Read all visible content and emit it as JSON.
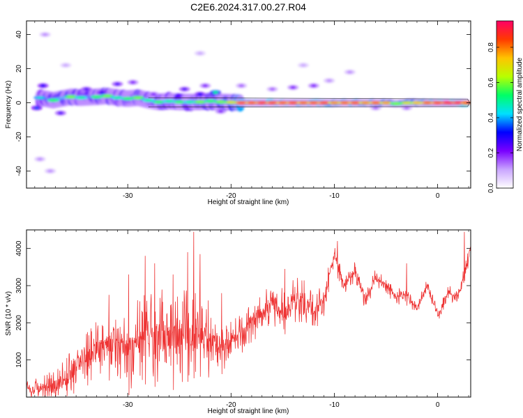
{
  "figure_title": "C2E6.2024.317.00.27.R04",
  "chart_data": [
    {
      "type": "heatmap",
      "title": "",
      "xlabel": "Height of straight line (km)",
      "ylabel": "Frequency (Hz)",
      "xlim": [
        -39.8,
        3.2
      ],
      "ylim": [
        -50,
        48
      ],
      "x_ticks": [
        -30,
        -20,
        -10,
        0
      ],
      "x_tick_labels": [
        "-30",
        "-20",
        "-10",
        "0"
      ],
      "y_ticks": [
        -40,
        -20,
        0,
        20,
        40
      ],
      "y_tick_labels": [
        "-40",
        "-20",
        "0",
        "20",
        "40"
      ],
      "colorbar": {
        "label": "Normalized spectral amplitude",
        "range": [
          0,
          0.95
        ],
        "ticks": [
          0.0,
          0.2,
          0.4,
          0.6,
          0.8
        ],
        "tick_labels": [
          "0.0",
          "0.2",
          "0.4",
          "0.6",
          "0.8"
        ],
        "colormap": [
          "#ffffff",
          "#c9a5ff",
          "#7a00ff",
          "#0000ff",
          "#00e0ff",
          "#00ff66",
          "#b8ff00",
          "#ffc400",
          "#ff3a00",
          "#ff0066"
        ]
      },
      "ridge_points": [
        {
          "x": -38.5,
          "y": 3.0,
          "a": 0.45
        },
        {
          "x": -37.2,
          "y": 1.5,
          "a": 0.55
        },
        {
          "x": -35.5,
          "y": 3.5,
          "a": 0.6
        },
        {
          "x": -34.5,
          "y": 3.0,
          "a": 0.5
        },
        {
          "x": -33.0,
          "y": 3.5,
          "a": 0.55
        },
        {
          "x": -32.0,
          "y": 4.0,
          "a": 0.6
        },
        {
          "x": -31.0,
          "y": 3.0,
          "a": 0.5
        },
        {
          "x": -30.0,
          "y": 2.5,
          "a": 0.55
        },
        {
          "x": -29.0,
          "y": 3.0,
          "a": 0.6
        },
        {
          "x": -28.0,
          "y": 1.5,
          "a": 0.5
        },
        {
          "x": -27.0,
          "y": 0.5,
          "a": 0.55
        },
        {
          "x": -26.0,
          "y": 1.0,
          "a": 0.5
        },
        {
          "x": -25.0,
          "y": 0.5,
          "a": 0.55
        },
        {
          "x": -24.0,
          "y": 0.5,
          "a": 0.5
        },
        {
          "x": -23.0,
          "y": 0.5,
          "a": 0.6
        },
        {
          "x": -22.0,
          "y": 1.0,
          "a": 0.55
        },
        {
          "x": -21.0,
          "y": 0.5,
          "a": 0.6
        },
        {
          "x": -20.0,
          "y": 0.3,
          "a": 0.7
        },
        {
          "x": -19.0,
          "y": 0.0,
          "a": 0.9
        },
        {
          "x": -18.0,
          "y": 0.0,
          "a": 0.88
        },
        {
          "x": -17.0,
          "y": 0.0,
          "a": 0.92
        },
        {
          "x": -16.0,
          "y": 0.0,
          "a": 0.9
        },
        {
          "x": -15.0,
          "y": 0.0,
          "a": 0.87
        },
        {
          "x": -14.0,
          "y": 0.0,
          "a": 0.9
        },
        {
          "x": -13.0,
          "y": 0.0,
          "a": 0.85
        },
        {
          "x": -12.0,
          "y": 0.0,
          "a": 0.88
        },
        {
          "x": -11.0,
          "y": 0.0,
          "a": 0.9
        },
        {
          "x": -10.0,
          "y": 0.0,
          "a": 0.8
        },
        {
          "x": -9.0,
          "y": 0.0,
          "a": 0.85
        },
        {
          "x": -8.0,
          "y": 0.0,
          "a": 0.88
        },
        {
          "x": -7.0,
          "y": 0.0,
          "a": 0.8
        },
        {
          "x": -6.0,
          "y": 0.0,
          "a": 0.85
        },
        {
          "x": -5.0,
          "y": 0.0,
          "a": 0.78
        },
        {
          "x": -4.0,
          "y": -0.5,
          "a": 0.6
        },
        {
          "x": -3.0,
          "y": 0.0,
          "a": 0.7
        },
        {
          "x": -2.0,
          "y": 0.0,
          "a": 0.75
        },
        {
          "x": -1.0,
          "y": 0.0,
          "a": 0.85
        },
        {
          "x": 0.0,
          "y": 0.0,
          "a": 0.9
        },
        {
          "x": 1.0,
          "y": 0.0,
          "a": 0.95
        },
        {
          "x": 2.0,
          "y": 0.0,
          "a": 0.95
        },
        {
          "x": 2.8,
          "y": 0.0,
          "a": 0.9
        }
      ],
      "scatter_blobs": [
        {
          "x": -38.2,
          "y": 10,
          "a": 0.3
        },
        {
          "x": -38.8,
          "y": -3,
          "a": 0.35
        },
        {
          "x": -36.5,
          "y": -6,
          "a": 0.25
        },
        {
          "x": -34.0,
          "y": 8,
          "a": 0.25
        },
        {
          "x": -32.5,
          "y": 6,
          "a": 0.3
        },
        {
          "x": -31.0,
          "y": 11,
          "a": 0.25
        },
        {
          "x": -29.5,
          "y": 12,
          "a": 0.2
        },
        {
          "x": -27.5,
          "y": 5,
          "a": 0.2
        },
        {
          "x": -24.5,
          "y": 8,
          "a": 0.25
        },
        {
          "x": -23.0,
          "y": 5,
          "a": 0.3
        },
        {
          "x": -22.5,
          "y": 10,
          "a": 0.2
        },
        {
          "x": -21.5,
          "y": 6,
          "a": 0.5
        },
        {
          "x": -19.0,
          "y": 10,
          "a": 0.15
        },
        {
          "x": -16.0,
          "y": 8,
          "a": 0.15
        },
        {
          "x": -14.0,
          "y": 9,
          "a": 0.2
        },
        {
          "x": -12.0,
          "y": 10,
          "a": 0.2
        },
        {
          "x": -10.5,
          "y": 13,
          "a": 0.12
        },
        {
          "x": -8.5,
          "y": 18,
          "a": 0.12
        },
        {
          "x": -6.0,
          "y": -3,
          "a": 0.15
        },
        {
          "x": -3.0,
          "y": -3,
          "a": 0.15
        },
        {
          "x": -38.0,
          "y": 40,
          "a": 0.12
        },
        {
          "x": -38.5,
          "y": -33,
          "a": 0.12
        },
        {
          "x": -37.5,
          "y": -40,
          "a": 0.12
        },
        {
          "x": -36.0,
          "y": 22,
          "a": 0.1
        },
        {
          "x": -23.0,
          "y": 29,
          "a": 0.1
        },
        {
          "x": -13.0,
          "y": 22,
          "a": 0.1
        },
        {
          "x": -21.0,
          "y": -5,
          "a": 0.2
        }
      ]
    },
    {
      "type": "line",
      "title": "",
      "xlabel": "Height of straight line (km)",
      "ylabel": "SNR (10 * v/v)",
      "xlim": [
        -39.8,
        3.2
      ],
      "ylim": [
        0,
        4500
      ],
      "x_ticks": [
        -30,
        -20,
        -10,
        0
      ],
      "x_tick_labels": [
        "-30",
        "-20",
        "-10",
        "0"
      ],
      "y_ticks": [
        1000,
        2000,
        3000,
        4000
      ],
      "y_tick_labels": [
        "1000",
        "2000",
        "3000",
        "4000"
      ],
      "line_color": "#ee3333",
      "anchors": {
        "x": [
          -39.8,
          -38.5,
          -37.0,
          -36.0,
          -35.0,
          -34.0,
          -33.0,
          -32.0,
          -31.0,
          -30.0,
          -29.0,
          -28.0,
          -27.0,
          -26.0,
          -25.0,
          -24.0,
          -23.0,
          -22.0,
          -21.0,
          -20.0,
          -19.0,
          -18.0,
          -17.0,
          -16.0,
          -15.0,
          -14.0,
          -13.0,
          -12.0,
          -11.0,
          -10.0,
          -9.0,
          -8.0,
          -7.0,
          -6.0,
          -5.0,
          -4.0,
          -3.0,
          -2.0,
          -1.0,
          0.0,
          1.0,
          2.0,
          3.2
        ],
        "y": [
          250,
          200,
          300,
          450,
          800,
          1100,
          1300,
          1500,
          1350,
          1200,
          1500,
          1700,
          1600,
          1700,
          1600,
          1800,
          1700,
          1500,
          1400,
          1500,
          1700,
          2000,
          2300,
          2500,
          2300,
          2500,
          2700,
          2300,
          2600,
          3800,
          3000,
          3400,
          2600,
          3200,
          3000,
          2700,
          2700,
          2400,
          3000,
          2200,
          2800,
          2700,
          4000
        ]
      },
      "noise_amplitude": {
        "x": [
          -39.8,
          -34,
          -30,
          -25,
          -21,
          -17,
          -13,
          -10,
          -5,
          0,
          3.2
        ],
        "y": [
          250,
          800,
          1200,
          1500,
          800,
          600,
          700,
          350,
          250,
          200,
          250
        ]
      },
      "spikes": [
        {
          "x": -33.9,
          "y": 1750
        },
        {
          "x": -31.8,
          "y": 2750
        },
        {
          "x": -29.9,
          "y": 3300
        },
        {
          "x": -28.3,
          "y": 3800
        },
        {
          "x": -27.4,
          "y": 3600
        },
        {
          "x": -25.6,
          "y": 3300
        },
        {
          "x": -24.2,
          "y": 3900
        },
        {
          "x": -23.6,
          "y": 4450
        },
        {
          "x": -23.0,
          "y": 3850
        },
        {
          "x": -22.2,
          "y": 2600
        },
        {
          "x": -20.9,
          "y": 2800
        },
        {
          "x": -14.8,
          "y": 3450
        },
        {
          "x": -9.7,
          "y": 4200
        },
        {
          "x": -3.0,
          "y": 3600
        },
        {
          "x": 2.6,
          "y": 4450
        }
      ]
    }
  ]
}
